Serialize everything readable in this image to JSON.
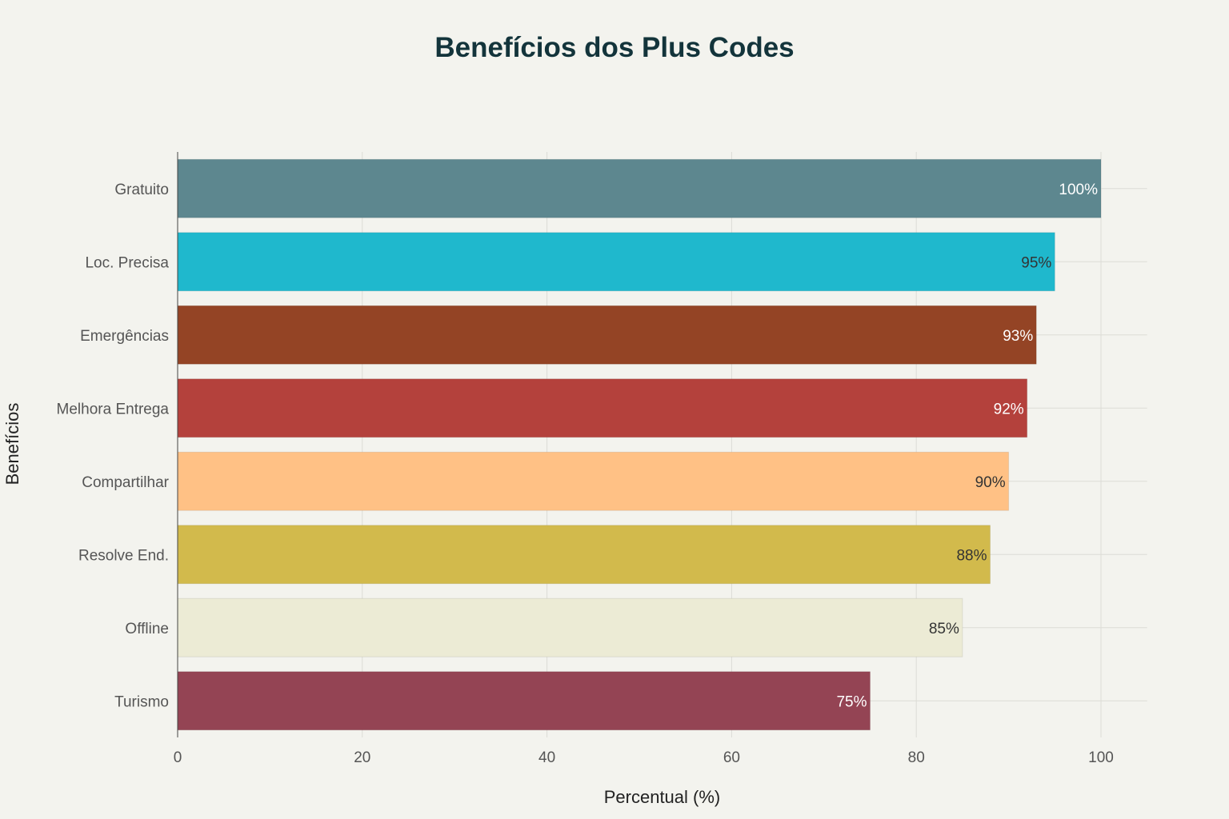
{
  "chart_data": {
    "type": "bar",
    "orientation": "horizontal",
    "title": "Benefícios dos Plus Codes",
    "xlabel": "Percentual (%)",
    "ylabel": "Benefícios",
    "categories": [
      "Gratuito",
      "Loc. Precisa",
      "Emergências",
      "Melhora Entrega",
      "Compartilhar",
      "Resolve End.",
      "Offline",
      "Turismo"
    ],
    "values": [
      100,
      95,
      93,
      92,
      90,
      88,
      85,
      75
    ],
    "data_labels": [
      "100%",
      "95%",
      "93%",
      "92%",
      "90%",
      "88%",
      "85%",
      "75%"
    ],
    "colors": [
      "#5d878f",
      "#1fb8cd",
      "#944425",
      "#b4413c",
      "#ffc185",
      "#d2ba4c",
      "#ecebd5",
      "#944454"
    ],
    "label_colors": [
      "#ffffff",
      "#333333",
      "#ffffff",
      "#ffffff",
      "#333333",
      "#333333",
      "#333333",
      "#ffffff"
    ],
    "xlim": [
      0,
      105
    ],
    "xticks": [
      0,
      20,
      40,
      60,
      80,
      100
    ],
    "grid": true,
    "background": "#f3f3ee"
  }
}
